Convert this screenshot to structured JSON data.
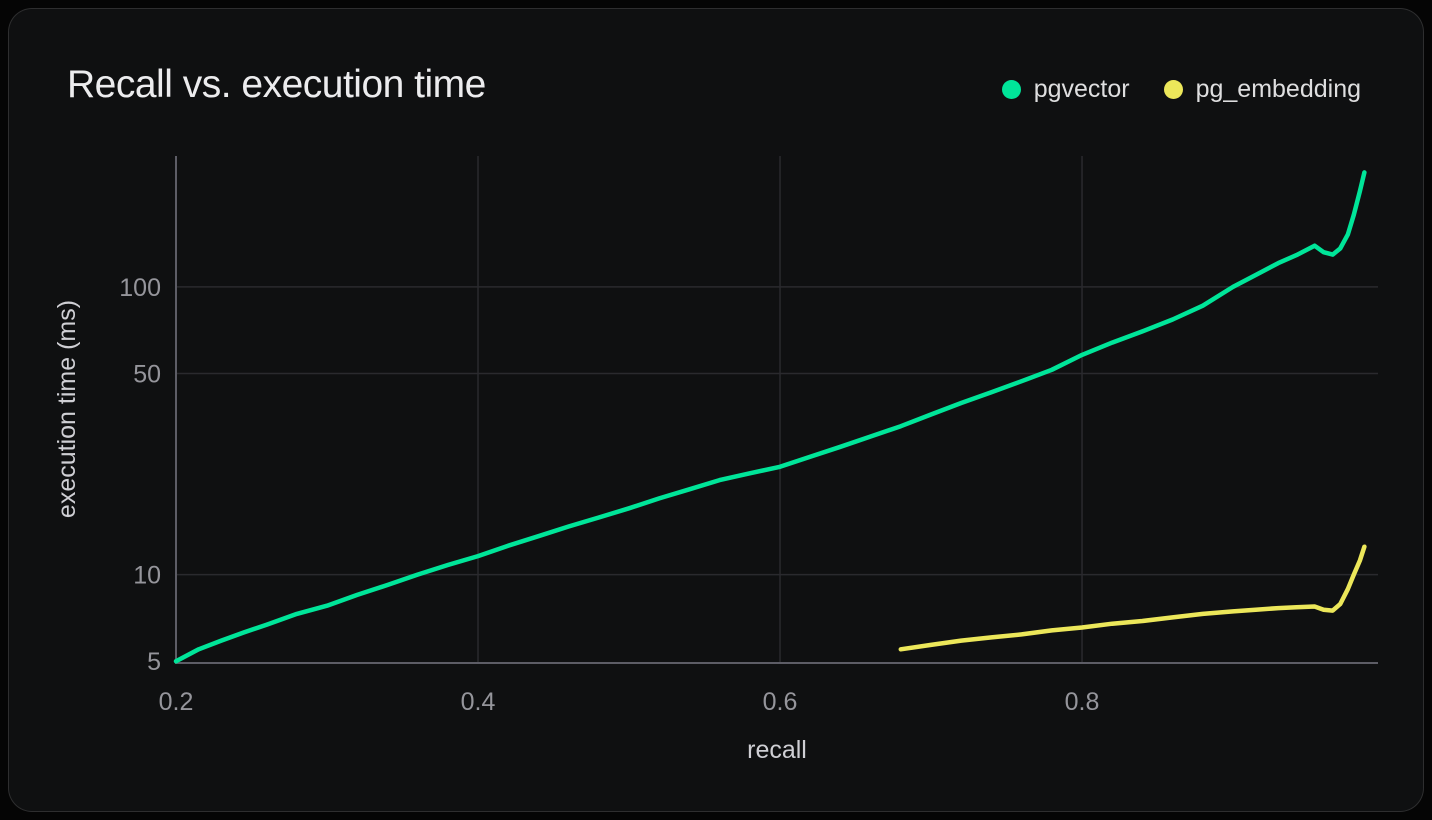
{
  "header": {
    "title": "Recall vs. execution time"
  },
  "colors": {
    "page_background": "#050505",
    "card_background": "#0f1011",
    "card_border": "#2f3136",
    "title_text": "#ececee",
    "tick_text": "#95959b",
    "axis_title_text": "#cfcfd4",
    "axis_line": "#5d5d66",
    "gridline": "#2a2a2e",
    "pgvector": "#00e599",
    "pg_embedding": "#ece75a"
  },
  "chart_data": {
    "type": "line",
    "title": "Recall vs. execution time",
    "xlabel": "recall",
    "ylabel": "execution time (ms)",
    "x_scale": "linear",
    "y_scale": "log",
    "xlim": [
      0.2,
      0.996
    ],
    "ylim": [
      4.93,
      285
    ],
    "xticks": [
      0.2,
      0.4,
      0.6,
      0.8
    ],
    "yticks": [
      5,
      10,
      50,
      100
    ],
    "grid": true,
    "legend_position": "top-right",
    "series": [
      {
        "name": "pgvector",
        "color": "#00e599",
        "points": [
          [
            0.2,
            5.0
          ],
          [
            0.215,
            5.5
          ],
          [
            0.23,
            5.9
          ],
          [
            0.245,
            6.3
          ],
          [
            0.26,
            6.7
          ],
          [
            0.28,
            7.3
          ],
          [
            0.3,
            7.8
          ],
          [
            0.32,
            8.5
          ],
          [
            0.34,
            9.2
          ],
          [
            0.36,
            10.0
          ],
          [
            0.38,
            10.8
          ],
          [
            0.4,
            11.6
          ],
          [
            0.42,
            12.6
          ],
          [
            0.44,
            13.6
          ],
          [
            0.46,
            14.7
          ],
          [
            0.48,
            15.8
          ],
          [
            0.5,
            17.0
          ],
          [
            0.52,
            18.4
          ],
          [
            0.54,
            19.8
          ],
          [
            0.56,
            21.3
          ],
          [
            0.58,
            22.5
          ],
          [
            0.6,
            23.7
          ],
          [
            0.62,
            25.7
          ],
          [
            0.64,
            27.8
          ],
          [
            0.66,
            30.2
          ],
          [
            0.68,
            32.8
          ],
          [
            0.7,
            36.0
          ],
          [
            0.72,
            39.5
          ],
          [
            0.74,
            43.0
          ],
          [
            0.76,
            47.0
          ],
          [
            0.78,
            51.5
          ],
          [
            0.8,
            58.0
          ],
          [
            0.82,
            64.0
          ],
          [
            0.84,
            70.0
          ],
          [
            0.86,
            77.0
          ],
          [
            0.88,
            86.0
          ],
          [
            0.9,
            100.0
          ],
          [
            0.915,
            110.0
          ],
          [
            0.93,
            121.0
          ],
          [
            0.942,
            129.0
          ],
          [
            0.954,
            139.0
          ],
          [
            0.96,
            132.0
          ],
          [
            0.966,
            129.5
          ],
          [
            0.971,
            136.0
          ],
          [
            0.976,
            152.0
          ],
          [
            0.98,
            178.0
          ],
          [
            0.984,
            215.0
          ],
          [
            0.987,
            250.0
          ]
        ]
      },
      {
        "name": "pg_embedding",
        "color": "#ece75a",
        "points": [
          [
            0.68,
            5.5
          ],
          [
            0.7,
            5.7
          ],
          [
            0.72,
            5.9
          ],
          [
            0.74,
            6.05
          ],
          [
            0.76,
            6.2
          ],
          [
            0.78,
            6.4
          ],
          [
            0.8,
            6.55
          ],
          [
            0.82,
            6.75
          ],
          [
            0.84,
            6.9
          ],
          [
            0.86,
            7.1
          ],
          [
            0.88,
            7.3
          ],
          [
            0.9,
            7.45
          ],
          [
            0.915,
            7.55
          ],
          [
            0.93,
            7.65
          ],
          [
            0.942,
            7.7
          ],
          [
            0.954,
            7.75
          ],
          [
            0.96,
            7.55
          ],
          [
            0.966,
            7.5
          ],
          [
            0.971,
            7.9
          ],
          [
            0.976,
            8.9
          ],
          [
            0.98,
            10.0
          ],
          [
            0.984,
            11.2
          ],
          [
            0.987,
            12.5
          ]
        ]
      }
    ]
  }
}
